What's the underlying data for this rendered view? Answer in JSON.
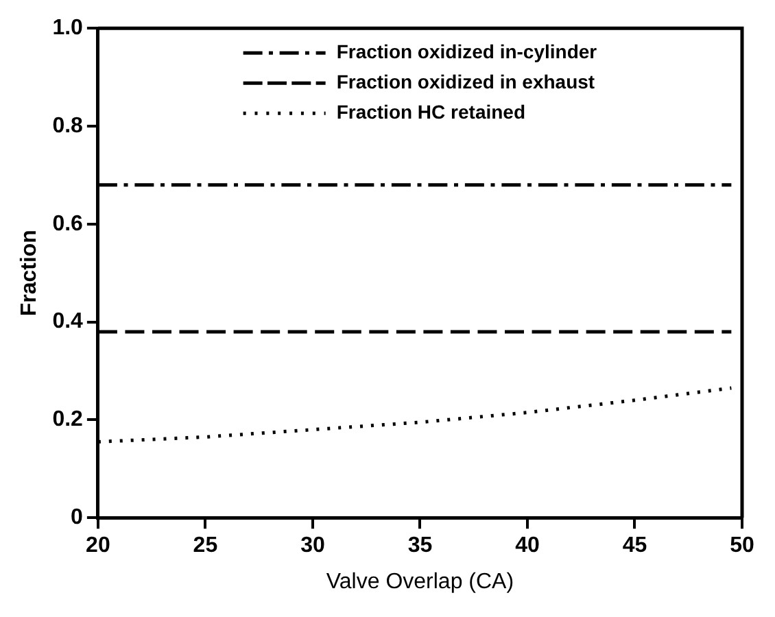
{
  "chart_data": {
    "type": "line",
    "xlabel": "Valve Overlap (CA)",
    "ylabel": "Fraction",
    "xlim": [
      20,
      50
    ],
    "xticks": [
      20,
      25,
      30,
      35,
      40,
      45,
      50
    ],
    "ylim": [
      0,
      1
    ],
    "yticks": [
      0,
      {
        "value": 0.2,
        "label": "0.2"
      },
      {
        "value": 0.4,
        "label": "0.4"
      },
      {
        "value": 0.6,
        "label": "0.6"
      },
      {
        "value": 0.8,
        "label": "0.8"
      },
      {
        "value": 1,
        "label": "1.0"
      }
    ],
    "x": [
      20,
      25,
      30,
      35,
      40,
      45,
      49.5
    ],
    "series": [
      {
        "name": "Fraction oxidized in-cylinder",
        "color": "#000000",
        "line_style": "dashdot",
        "values": [
          0.68,
          0.68,
          0.68,
          0.68,
          0.68,
          0.68,
          0.68
        ]
      },
      {
        "name": "Fraction oxidized in exhaust",
        "color": "#000000",
        "line_style": "dashed",
        "values": [
          0.38,
          0.38,
          0.38,
          0.38,
          0.38,
          0.38,
          0.38
        ]
      },
      {
        "name": "Fraction HC retained",
        "color": "#000000",
        "line_style": "dotted",
        "values": [
          0.155,
          0.165,
          0.18,
          0.195,
          0.215,
          0.24,
          0.265
        ]
      }
    ],
    "grid": false,
    "legend": "top",
    "marker": "none"
  }
}
